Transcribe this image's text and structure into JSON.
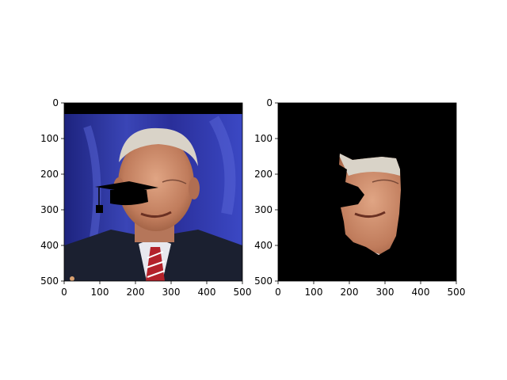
{
  "chart_data": [
    {
      "type": "image",
      "content": "portrait photo of an older man in a dark suit, red striped tie, white shirt, blue draped background; black graduation-cap overlay near the eyes",
      "xlim": [
        0,
        500
      ],
      "ylim": [
        500,
        0
      ],
      "xticks": [
        "0",
        "100",
        "200",
        "300",
        "400",
        "500"
      ],
      "yticks": [
        "0",
        "100",
        "200",
        "300",
        "400",
        "500"
      ]
    },
    {
      "type": "image",
      "content": "segmented face region on black background; graduation-cap shape masked out",
      "xlim": [
        0,
        500
      ],
      "ylim": [
        500,
        0
      ],
      "xticks": [
        "0",
        "100",
        "200",
        "300",
        "400",
        "500"
      ],
      "yticks": [
        "0",
        "100",
        "200",
        "300",
        "400",
        "500"
      ]
    }
  ],
  "colors": {
    "background": "#ffffff",
    "stage_blue": "#2a2f9a",
    "suit": "#1b2030",
    "tie_red": "#b3222a",
    "skin": "#c98a6a",
    "hair": "#d9d3c8",
    "cap": "#000000",
    "mask_bg": "#000000"
  }
}
